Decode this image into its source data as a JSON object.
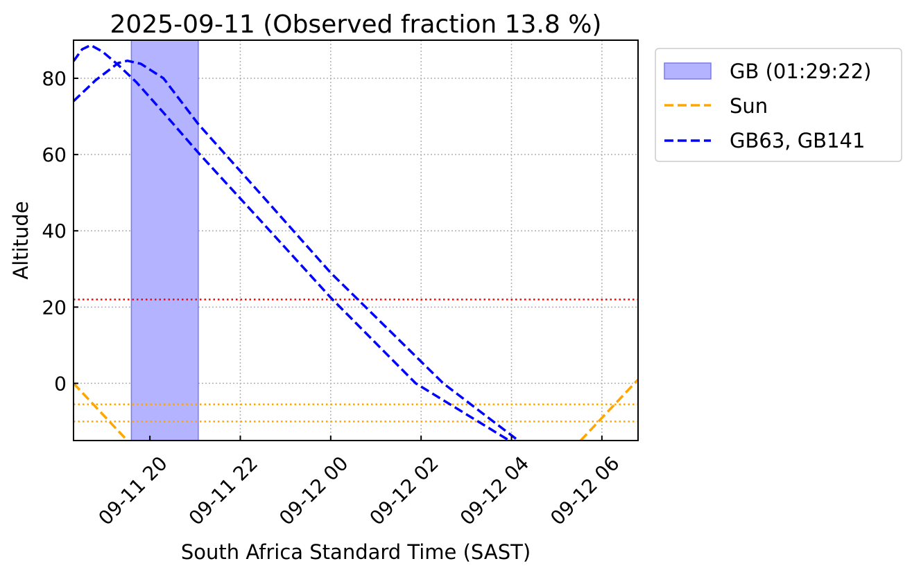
{
  "chart_data": {
    "type": "line",
    "title": "2025-09-11 (Observed fraction 13.8 %)",
    "xlabel": "South Africa Standard Time (SAST)",
    "ylabel": "Altitude",
    "x_units": "hours since 2025-09-11 00:00 SAST",
    "xlim": [
      18.31,
      30.8
    ],
    "ylim": [
      -15,
      90
    ],
    "grid": true,
    "xticks": [
      {
        "value": 20,
        "label": "09-11 20"
      },
      {
        "value": 22,
        "label": "09-11 22"
      },
      {
        "value": 24,
        "label": "09-12 00"
      },
      {
        "value": 26,
        "label": "09-12 02"
      },
      {
        "value": 28,
        "label": "09-12 04"
      },
      {
        "value": 30,
        "label": "09-12 06"
      }
    ],
    "yticks": [
      0,
      20,
      40,
      60,
      80
    ],
    "shaded_span": {
      "label": "GB (01:29:22)",
      "x_start": 19.59,
      "x_end": 21.07,
      "color": "#b3b3ff"
    },
    "hlines": [
      {
        "y": 22,
        "color": "#ff0000"
      },
      {
        "y": -5.5,
        "color": "#ffa500"
      },
      {
        "y": -10,
        "color": "#ffa500"
      }
    ],
    "series": [
      {
        "name": "Sun",
        "color": "#ffa500",
        "segments": [
          [
            [
              18.31,
              0
            ],
            [
              19.5,
              -15
            ]
          ],
          [
            [
              29.53,
              -15
            ],
            [
              30.8,
              1
            ]
          ]
        ]
      },
      {
        "name": "GB63",
        "color": "#0000ff",
        "segments": [
          [
            [
              18.31,
              84.5
            ],
            [
              18.5,
              87.6
            ],
            [
              18.69,
              88.7
            ],
            [
              18.95,
              87
            ],
            [
              19.3,
              83.5
            ],
            [
              19.7,
              79
            ],
            [
              20.3,
              71
            ],
            [
              21.07,
              60.5
            ],
            [
              22.5,
              42
            ],
            [
              24,
              22.5
            ],
            [
              25.88,
              0
            ],
            [
              27.95,
              -15
            ]
          ]
        ]
      },
      {
        "name": "GB141",
        "color": "#0000ff",
        "segments": [
          [
            [
              18.31,
              74
            ],
            [
              18.8,
              79.5
            ],
            [
              19.3,
              84
            ],
            [
              19.5,
              84.6
            ],
            [
              19.8,
              83.8
            ],
            [
              20.3,
              80
            ],
            [
              21.07,
              68
            ],
            [
              22.5,
              49
            ],
            [
              24,
              29
            ],
            [
              26.49,
              0
            ],
            [
              28.15,
              -15
            ]
          ]
        ]
      }
    ],
    "legend": {
      "placement": "outside-top-right",
      "entries": [
        {
          "label": "GB (01:29:22)",
          "kind": "patch",
          "color": "#b3b3ff"
        },
        {
          "label": "Sun",
          "kind": "dashed",
          "color": "#ffa500"
        },
        {
          "label": "GB63, GB141",
          "kind": "dashed",
          "color": "#0000ff"
        }
      ]
    }
  }
}
